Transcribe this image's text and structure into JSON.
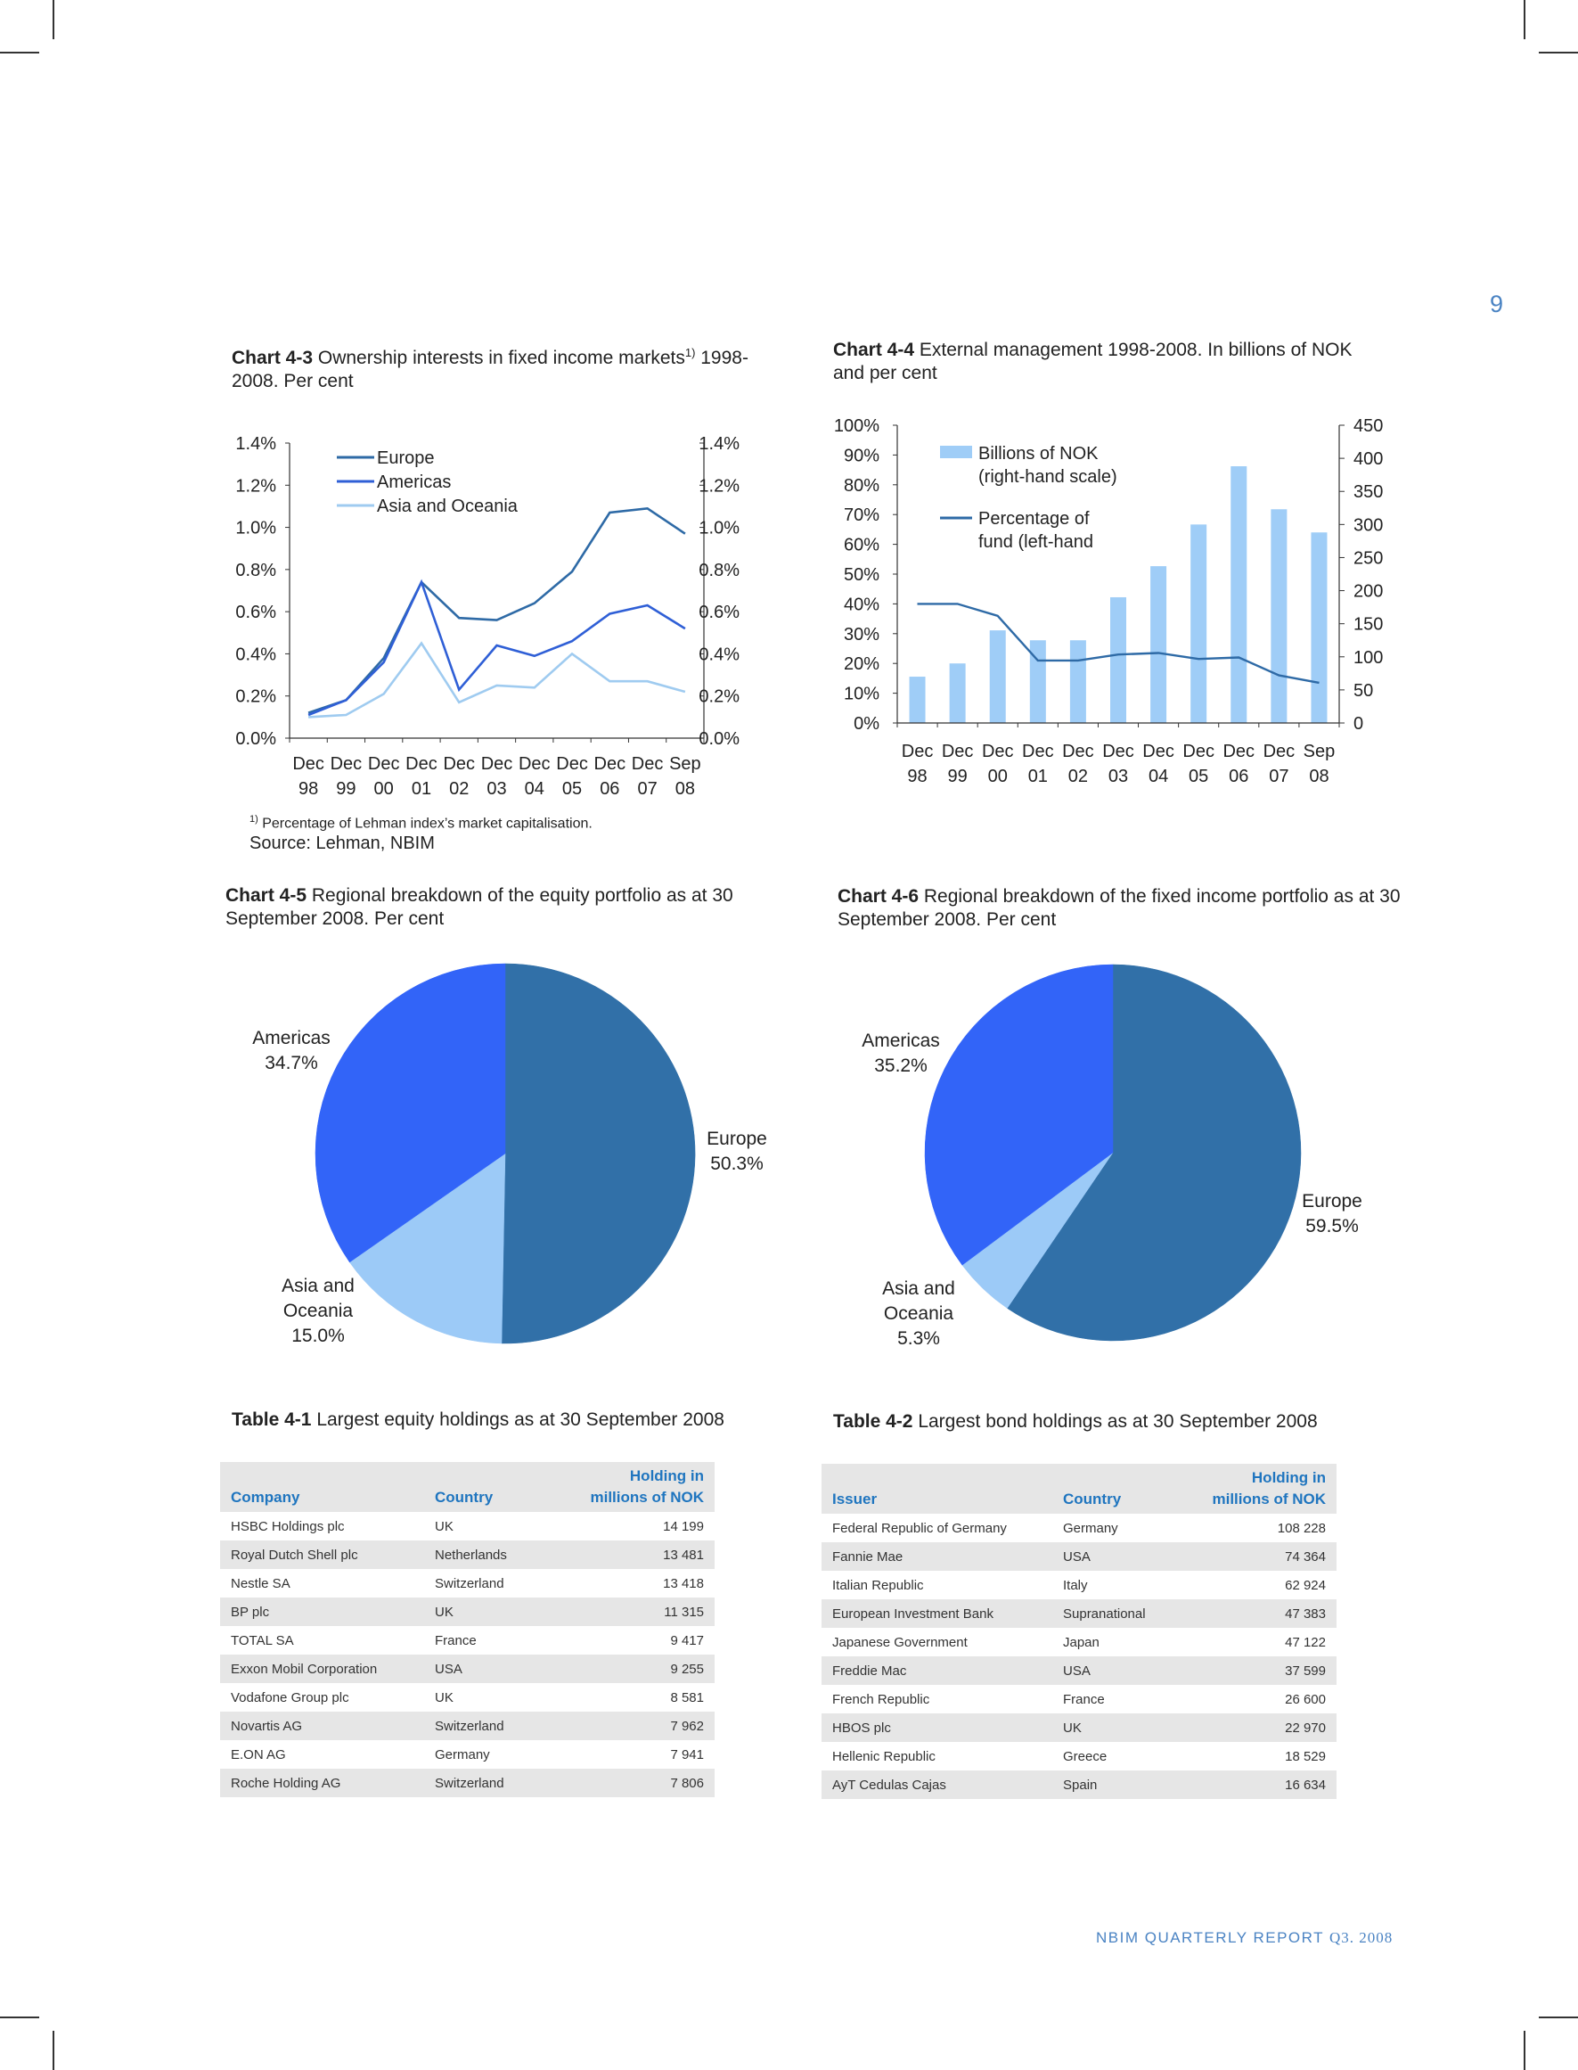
{
  "page": {
    "number": "9"
  },
  "chart43": {
    "caption_bold": "Chart 4-3",
    "caption_text": " Ownership interests in fixed income markets",
    "caption_sup": "1)",
    "caption_text2": " 1998-2008. Per cent",
    "footnote_sup": "1)",
    "footnote": " Percentage of Lehman index’s market capitalisation.",
    "source": "Source: Lehman, NBIM"
  },
  "chart44": {
    "caption_bold": "Chart 4-4",
    "caption_text": " External management 1998-2008. In billions of NOK and per cent"
  },
  "chart45": {
    "caption_bold": "Chart 4-5",
    "caption_text": " Regional breakdown of the equity portfolio as at 30 September 2008. Per cent"
  },
  "chart46": {
    "caption_bold": "Chart 4-6",
    "caption_text": " Regional breakdown of the fixed income portfolio as at 30 September 2008. Per cent"
  },
  "chart_data": [
    {
      "id": "chart-4-3",
      "type": "line",
      "title": "Ownership interests in fixed income markets 1998-2008. Per cent",
      "x": [
        "Dec 98",
        "Dec 99",
        "Dec 00",
        "Dec 01",
        "Dec 02",
        "Dec 03",
        "Dec 04",
        "Dec 05",
        "Dec 06",
        "Dec 07",
        "Sep 08"
      ],
      "x_lines": [
        [
          "Dec",
          "98"
        ],
        [
          "Dec",
          "99"
        ],
        [
          "Dec",
          "00"
        ],
        [
          "Dec",
          "01"
        ],
        [
          "Dec",
          "02"
        ],
        [
          "Dec",
          "03"
        ],
        [
          "Dec",
          "04"
        ],
        [
          "Dec",
          "05"
        ],
        [
          "Dec",
          "06"
        ],
        [
          "Dec",
          "07"
        ],
        [
          "Sep",
          "08"
        ]
      ],
      "ylim": [
        0,
        1.4
      ],
      "yticks": [
        "0.0%",
        "0.2%",
        "0.4%",
        "0.6%",
        "0.8%",
        "1.0%",
        "1.2%",
        "1.4%"
      ],
      "ytick_values": [
        0,
        0.2,
        0.4,
        0.6,
        0.8,
        1.0,
        1.2,
        1.4
      ],
      "legend_position": "top-left",
      "series": [
        {
          "name": "Europe",
          "color": "#2e6aa6",
          "values": [
            0.12,
            0.18,
            0.38,
            0.74,
            0.57,
            0.56,
            0.64,
            0.79,
            1.07,
            1.09,
            0.97
          ]
        },
        {
          "name": "Americas",
          "color": "#2f5fd6",
          "values": [
            0.11,
            0.18,
            0.36,
            0.74,
            0.23,
            0.44,
            0.39,
            0.46,
            0.59,
            0.63,
            0.52
          ]
        },
        {
          "name": "Asia and Oceania",
          "color": "#9fcbf0",
          "values": [
            0.1,
            0.11,
            0.21,
            0.45,
            0.17,
            0.25,
            0.24,
            0.4,
            0.27,
            0.27,
            0.22
          ]
        }
      ]
    },
    {
      "id": "chart-4-4",
      "type": "bar",
      "title": "External management 1998-2008. In billions of NOK and per cent",
      "categories": [
        "Dec 98",
        "Dec 99",
        "Dec 00",
        "Dec 01",
        "Dec 02",
        "Dec 03",
        "Dec 04",
        "Dec 05",
        "Dec 06",
        "Dec 07",
        "Sep 08"
      ],
      "x_lines": [
        [
          "Dec",
          "98"
        ],
        [
          "Dec",
          "99"
        ],
        [
          "Dec",
          "00"
        ],
        [
          "Dec",
          "01"
        ],
        [
          "Dec",
          "02"
        ],
        [
          "Dec",
          "03"
        ],
        [
          "Dec",
          "04"
        ],
        [
          "Dec",
          "05"
        ],
        [
          "Dec",
          "06"
        ],
        [
          "Dec",
          "07"
        ],
        [
          "Sep",
          "08"
        ]
      ],
      "left_ylim": [
        0,
        100
      ],
      "left_yticks": [
        "0%",
        "10%",
        "20%",
        "30%",
        "40%",
        "50%",
        "60%",
        "70%",
        "80%",
        "90%",
        "100%"
      ],
      "right_ylim": [
        0,
        450
      ],
      "right_yticks": [
        "0",
        "50",
        "100",
        "150",
        "200",
        "250",
        "300",
        "350",
        "400",
        "450"
      ],
      "legend_position": "top-left",
      "series": [
        {
          "name": "Billions of NOK (right-hand scale)",
          "legend_lines": [
            "Billions of NOK",
            "(right-hand scale)"
          ],
          "axis": "right",
          "kind": "bar",
          "color": "#9fcdf7",
          "values": [
            70,
            90,
            140,
            125,
            125,
            190,
            237,
            300,
            388,
            323,
            288
          ]
        },
        {
          "name": "Percentage of fund (left-hand",
          "legend_lines": [
            "Percentage of",
            "fund (left-hand"
          ],
          "axis": "left",
          "kind": "line",
          "color": "#2e6aa6",
          "values": [
            40,
            40,
            36,
            21,
            21,
            23,
            23.5,
            21.5,
            22,
            16,
            13.5
          ]
        }
      ]
    },
    {
      "id": "chart-4-5",
      "type": "pie",
      "title": "Regional breakdown of the equity portfolio as at 30 September 2008. Per cent",
      "slices": [
        {
          "label": "Europe",
          "value": 50.3,
          "value_text": "50.3%",
          "color": "#3170a8"
        },
        {
          "label": "Asia and Oceania",
          "label_lines": [
            "Asia and",
            "Oceania"
          ],
          "value": 15.0,
          "value_text": "15.0%",
          "color": "#9ccaf7"
        },
        {
          "label": "Americas",
          "value": 34.7,
          "value_text": "34.7%",
          "color": "#3264f8"
        }
      ]
    },
    {
      "id": "chart-4-6",
      "type": "pie",
      "title": "Regional breakdown of the fixed income portfolio as at 30 September 2008. Per cent",
      "slices": [
        {
          "label": "Europe",
          "value": 59.5,
          "value_text": "59.5%",
          "color": "#3170a8"
        },
        {
          "label": "Asia and Oceania",
          "label_lines": [
            "Asia and",
            "Oceania"
          ],
          "value": 5.3,
          "value_text": "5.3%",
          "color": "#9ccaf7"
        },
        {
          "label": "Americas",
          "value": 35.2,
          "value_text": "35.2%",
          "color": "#3264f8"
        }
      ]
    }
  ],
  "table41": {
    "caption_bold": "Table 4-1",
    "caption_text": " Largest equity holdings as at 30 September 2008",
    "headers": {
      "c1": "Company",
      "c2": "Country",
      "c3a": "Holding in",
      "c3b": "millions of NOK"
    },
    "rows": [
      [
        "HSBC Holdings plc",
        "UK",
        "14 199"
      ],
      [
        "Royal Dutch Shell plc",
        "Netherlands",
        "13 481"
      ],
      [
        "Nestle SA",
        "Switzerland",
        "13 418"
      ],
      [
        "BP plc",
        "UK",
        "11 315"
      ],
      [
        "TOTAL SA",
        "France",
        "9 417"
      ],
      [
        "Exxon Mobil Corporation",
        "USA",
        "9 255"
      ],
      [
        "Vodafone Group plc",
        "UK",
        "8 581"
      ],
      [
        "Novartis AG",
        "Switzerland",
        "7 962"
      ],
      [
        "E.ON AG",
        "Germany",
        "7 941"
      ],
      [
        "Roche Holding AG",
        "Switzerland",
        "7 806"
      ]
    ]
  },
  "table42": {
    "caption_bold": "Table 4-2",
    "caption_text": " Largest bond holdings as at 30 September 2008",
    "headers": {
      "c1": "Issuer",
      "c2": "Country",
      "c3a": "Holding in",
      "c3b": "millions of NOK"
    },
    "rows": [
      [
        "Federal Republic of Germany",
        "Germany",
        "108 228"
      ],
      [
        "Fannie Mae",
        "USA",
        "74 364"
      ],
      [
        "Italian Republic",
        "Italy",
        "62 924"
      ],
      [
        "European Investment Bank",
        "Supranational",
        "47 383"
      ],
      [
        "Japanese Government",
        "Japan",
        "47 122"
      ],
      [
        "Freddie Mac",
        "USA",
        "37 599"
      ],
      [
        "French Republic",
        "France",
        "26 600"
      ],
      [
        "HBOS plc",
        "UK",
        "22 970"
      ],
      [
        "Hellenic Republic",
        "Greece",
        "18 529"
      ],
      [
        "AyT Cedulas Cajas",
        "Spain",
        "16 634"
      ]
    ]
  },
  "footer": {
    "report": "NBIM QUARTERLY REPORT ",
    "quarter": "Q3. 2008"
  }
}
